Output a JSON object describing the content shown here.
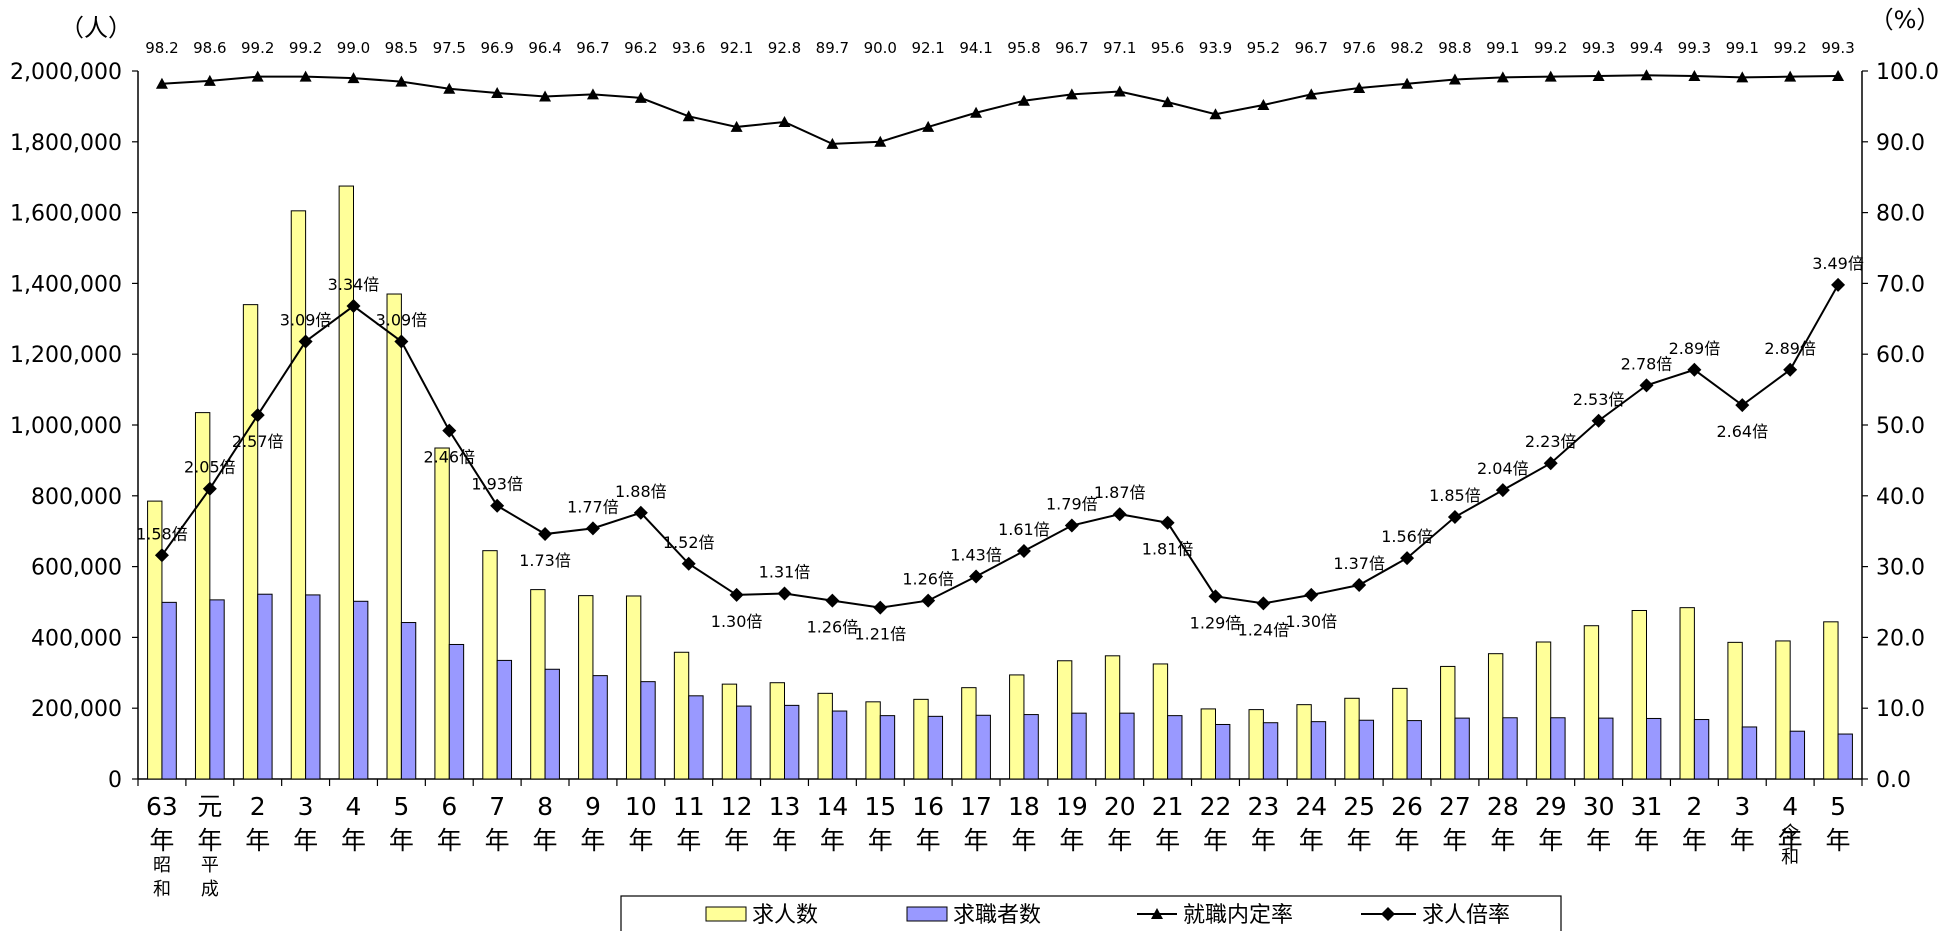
{
  "chart_data": {
    "type": "bar",
    "left_unit": "（人）",
    "right_unit": "（%）",
    "ylim_left": [
      0,
      2000000
    ],
    "ylim_right": [
      0,
      100
    ],
    "left_ticks": [
      "0",
      "200,000",
      "400,000",
      "600,000",
      "800,000",
      "1,000,000",
      "1,200,000",
      "1,400,000",
      "1,600,000",
      "1,800,000",
      "2,000,000"
    ],
    "right_ticks": [
      "0.0",
      "10.0",
      "20.0",
      "30.0",
      "40.0",
      "50.0",
      "60.0",
      "70.0",
      "80.0",
      "90.0",
      "100.0"
    ],
    "categories": [
      "63",
      "元",
      "2",
      "3",
      "4",
      "5",
      "6",
      "7",
      "8",
      "9",
      "10",
      "11",
      "12",
      "13",
      "14",
      "15",
      "16",
      "17",
      "18",
      "19",
      "20",
      "21",
      "22",
      "23",
      "24",
      "25",
      "26",
      "27",
      "28",
      "29",
      "30",
      "31",
      "2",
      "3",
      "4",
      "5"
    ],
    "year_suffix": "年",
    "era_labels": [
      {
        "index": 0,
        "chars": [
          "昭",
          "和"
        ]
      },
      {
        "index": 1,
        "chars": [
          "平",
          "成"
        ]
      },
      {
        "index": 34,
        "chars": [
          "令",
          "和"
        ]
      }
    ],
    "grid": false,
    "legend_position": "bottom",
    "series": [
      {
        "name": "求人数",
        "type": "bar",
        "axis": "left",
        "color": "#ffff99",
        "values": [
          785000,
          1035000,
          1340000,
          1605000,
          1675000,
          1370000,
          935000,
          645000,
          535000,
          518000,
          517000,
          358000,
          268000,
          272000,
          242000,
          218000,
          225000,
          258000,
          294000,
          334000,
          348000,
          325000,
          198000,
          196000,
          210000,
          228000,
          256000,
          318000,
          354000,
          387000,
          433000,
          476000,
          484000,
          386000,
          390000,
          444000
        ]
      },
      {
        "name": "求職者数",
        "type": "bar",
        "axis": "left",
        "color": "#9999ff",
        "values": [
          499000,
          506000,
          522000,
          520000,
          502000,
          442000,
          380000,
          335000,
          310000,
          292000,
          275000,
          235000,
          206000,
          208000,
          192000,
          179000,
          177000,
          180000,
          182000,
          186000,
          186000,
          179000,
          154000,
          159000,
          162000,
          166000,
          165000,
          172000,
          173000,
          173000,
          172000,
          171000,
          168000,
          147000,
          135000,
          127000
        ]
      },
      {
        "name": "就職内定率",
        "type": "line",
        "axis": "right",
        "marker": "triangle",
        "values": [
          98.2,
          98.6,
          99.2,
          99.2,
          99.0,
          98.5,
          97.5,
          96.9,
          96.4,
          96.7,
          96.2,
          93.6,
          92.1,
          92.8,
          89.7,
          90.0,
          92.1,
          94.1,
          95.8,
          96.7,
          97.1,
          95.6,
          93.9,
          95.2,
          96.7,
          97.6,
          98.2,
          98.8,
          99.1,
          99.2,
          99.3,
          99.4,
          99.3,
          99.1,
          99.2,
          99.3
        ],
        "labels": [
          "98.2",
          "98.6",
          "99.2",
          "99.2",
          "99.0",
          "98.5",
          "97.5",
          "96.9",
          "96.4",
          "96.7",
          "96.2",
          "93.6",
          "92.1",
          "92.8",
          "89.7",
          "90.0",
          "92.1",
          "94.1",
          "95.8",
          "96.7",
          "97.1",
          "95.6",
          "93.9",
          "95.2",
          "96.7",
          "97.6",
          "98.2",
          "98.8",
          "99.1",
          "99.2",
          "99.3",
          "99.4",
          "99.3",
          "99.1",
          "99.2",
          "99.3"
        ]
      },
      {
        "name": "求人倍率",
        "type": "line",
        "axis": "left",
        "marker": "diamond",
        "values": [
          1.58,
          2.05,
          2.57,
          3.09,
          3.34,
          3.09,
          2.46,
          1.93,
          1.73,
          1.77,
          1.88,
          1.52,
          1.3,
          1.31,
          1.26,
          1.21,
          1.26,
          1.43,
          1.61,
          1.79,
          1.87,
          1.81,
          1.29,
          1.24,
          1.3,
          1.37,
          1.56,
          1.85,
          2.04,
          2.23,
          2.53,
          2.78,
          2.89,
          2.64,
          2.89,
          3.49
        ],
        "labels": [
          "1.58倍",
          "2.05倍",
          "2.57倍",
          "3.09倍",
          "3.34倍",
          "3.09倍",
          "2.46倍",
          "1.93倍",
          "1.73倍",
          "1.77倍",
          "1.88倍",
          "1.52倍",
          "1.30倍",
          "1.31倍",
          "1.26倍",
          "1.21倍",
          "1.26倍",
          "1.43倍",
          "1.61倍",
          "1.79倍",
          "1.87倍",
          "1.81倍",
          "1.29倍",
          "1.24倍",
          "1.30倍",
          "1.37倍",
          "1.56倍",
          "1.85倍",
          "2.04倍",
          "2.23倍",
          "2.53倍",
          "2.78倍",
          "2.89倍",
          "2.64倍",
          "2.89倍",
          "3.49倍"
        ]
      }
    ]
  }
}
